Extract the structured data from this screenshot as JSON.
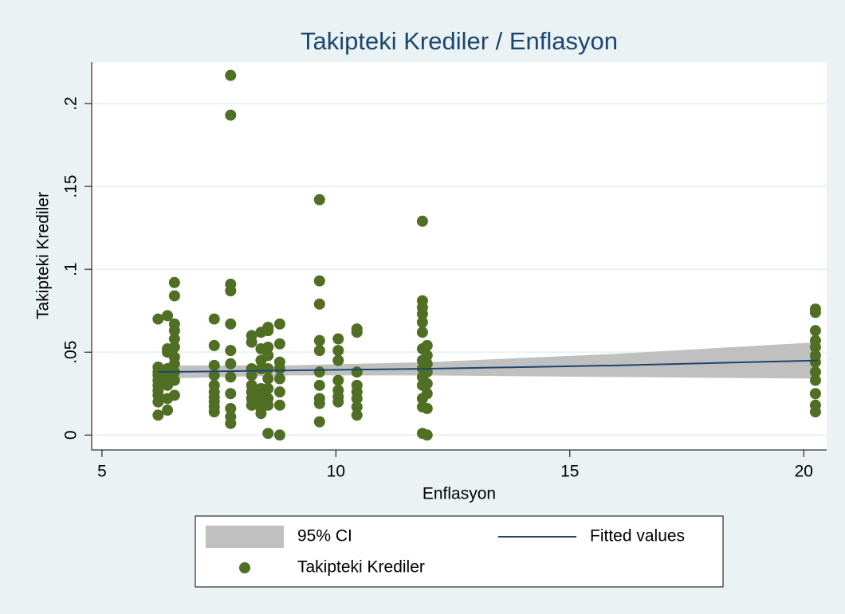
{
  "chart_data": {
    "type": "scatter",
    "title": "Takipteki Krediler / Enflasyon",
    "x_label": "Enflasyon",
    "y_label": "Takipteki Krediler",
    "xlim": [
      4.78,
      20.49
    ],
    "ylim": [
      -0.009,
      0.225
    ],
    "xticks": [
      5,
      10,
      15,
      20
    ],
    "yticks": [
      0,
      {
        "value": 0.05,
        "label": ".05"
      },
      {
        "value": 0.1,
        "label": ".1"
      },
      {
        "value": 0.15,
        "label": ".15"
      },
      {
        "value": 0.2,
        "label": ".2"
      }
    ],
    "grid": true,
    "series": [
      {
        "name": "95% CI",
        "kind": "band",
        "color": "#c0c0c0",
        "x": [
          6.2,
          9,
          12,
          16,
          20.3
        ],
        "lower": [
          0.034,
          0.036,
          0.036,
          0.035,
          0.034
        ],
        "upper": [
          0.042,
          0.042,
          0.044,
          0.049,
          0.056
        ]
      },
      {
        "name": "Fitted values",
        "kind": "line",
        "color": "#1a476f",
        "x": [
          6.2,
          9,
          12,
          16,
          20.3
        ],
        "values": [
          0.038,
          0.039,
          0.04,
          0.042,
          0.045
        ]
      },
      {
        "name": "Takipteki Krediler",
        "kind": "points",
        "color": "#4f6f23",
        "x": [
          6.2,
          6.2,
          6.2,
          6.2,
          6.2,
          6.2,
          6.2,
          6.2,
          6.2,
          6.2,
          6.4,
          6.4,
          6.4,
          6.4,
          6.4,
          6.4,
          6.4,
          6.4,
          6.55,
          6.55,
          6.55,
          6.55,
          6.55,
          6.55,
          6.55,
          6.55,
          6.55,
          6.55,
          6.55,
          7.4,
          7.4,
          7.4,
          7.4,
          7.4,
          7.4,
          7.4,
          7.4,
          7.4,
          7.4,
          7.75,
          7.75,
          7.75,
          7.75,
          7.75,
          7.75,
          7.75,
          7.75,
          7.75,
          7.75,
          7.75,
          7.75,
          8.2,
          8.2,
          8.2,
          8.2,
          8.2,
          8.2,
          8.2,
          8.2,
          8.4,
          8.4,
          8.4,
          8.4,
          8.4,
          8.4,
          8.4,
          8.4,
          8.4,
          8.55,
          8.55,
          8.55,
          8.55,
          8.55,
          8.55,
          8.55,
          8.55,
          8.55,
          8.55,
          8.8,
          8.8,
          8.8,
          8.8,
          8.8,
          8.8,
          8.8,
          8.8,
          9.65,
          9.65,
          9.65,
          9.65,
          9.65,
          9.65,
          9.65,
          9.65,
          9.65,
          9.65,
          10.05,
          10.05,
          10.05,
          10.05,
          10.05,
          10.05,
          10.05,
          10.45,
          10.45,
          10.45,
          10.45,
          10.45,
          10.45,
          10.45,
          10.45,
          11.85,
          11.85,
          11.85,
          11.85,
          11.85,
          11.85,
          11.85,
          11.85,
          11.85,
          11.85,
          11.85,
          11.85,
          11.85,
          11.85,
          11.95,
          11.95,
          11.95,
          11.95,
          11.95,
          11.95,
          11.95,
          11.95,
          20.25,
          20.25,
          20.25,
          20.25,
          20.25,
          20.25,
          20.25,
          20.25,
          20.25,
          20.25,
          20.25,
          20.25
        ],
        "values": [
          0.07,
          0.041,
          0.038,
          0.033,
          0.03,
          0.027,
          0.024,
          0.02,
          0.012,
          0.036,
          0.072,
          0.052,
          0.05,
          0.04,
          0.035,
          0.03,
          0.015,
          0.022,
          0.092,
          0.084,
          0.067,
          0.063,
          0.058,
          0.053,
          0.047,
          0.043,
          0.038,
          0.033,
          0.024,
          0.07,
          0.054,
          0.042,
          0.036,
          0.03,
          0.026,
          0.023,
          0.02,
          0.017,
          0.014,
          0.217,
          0.193,
          0.091,
          0.087,
          0.067,
          0.051,
          0.043,
          0.035,
          0.025,
          0.016,
          0.011,
          0.007,
          0.06,
          0.056,
          0.04,
          0.036,
          0.03,
          0.026,
          0.022,
          0.018,
          0.062,
          0.052,
          0.045,
          0.04,
          0.028,
          0.024,
          0.02,
          0.016,
          0.013,
          0.065,
          0.063,
          0.053,
          0.048,
          0.04,
          0.034,
          0.028,
          0.022,
          0.018,
          0.001,
          0.067,
          0.055,
          0.044,
          0.04,
          0.034,
          0.026,
          0.018,
          0.0,
          0.142,
          0.093,
          0.079,
          0.057,
          0.051,
          0.038,
          0.03,
          0.022,
          0.019,
          0.008,
          0.058,
          0.051,
          0.045,
          0.033,
          0.027,
          0.023,
          0.02,
          0.064,
          0.062,
          0.038,
          0.03,
          0.026,
          0.022,
          0.017,
          0.012,
          0.129,
          0.081,
          0.077,
          0.073,
          0.068,
          0.062,
          0.052,
          0.045,
          0.04,
          0.035,
          0.03,
          0.022,
          0.017,
          0.001,
          0.054,
          0.048,
          0.043,
          0.038,
          0.031,
          0.025,
          0.016,
          0.0,
          0.076,
          0.074,
          0.063,
          0.057,
          0.053,
          0.048,
          0.044,
          0.038,
          0.033,
          0.025,
          0.018,
          0.014
        ]
      }
    ]
  }
}
